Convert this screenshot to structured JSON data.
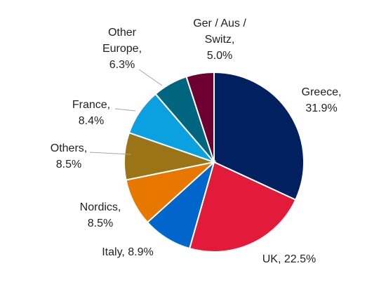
{
  "chart_data": {
    "type": "pie",
    "title": "",
    "unit": "%",
    "start_angle_deg": 0,
    "direction": "clockwise",
    "slices": [
      {
        "label": "Greece",
        "value": 31.9,
        "value_text": "31.9%",
        "color": "#002060"
      },
      {
        "label": "UK",
        "value": 22.5,
        "value_text": "22.5%",
        "color": "#E31B3B"
      },
      {
        "label": "Italy",
        "value": 8.9,
        "value_text": "8.9%",
        "color": "#0066CC"
      },
      {
        "label": "Nordics",
        "value": 8.5,
        "value_text": "8.5%",
        "color": "#E87700"
      },
      {
        "label": "Others",
        "value": 8.5,
        "value_text": "8.5%",
        "color": "#9A7416"
      },
      {
        "label": "France",
        "value": 8.4,
        "value_text": "8.4%",
        "color": "#0BA0E0"
      },
      {
        "label": "Other Europe",
        "value": 6.3,
        "value_text": "6.3%",
        "color": "#006680"
      },
      {
        "label": "Ger / Aus / Switz",
        "value": 5.0,
        "value_text": "5.0%",
        "color": "#6E0031"
      }
    ]
  }
}
